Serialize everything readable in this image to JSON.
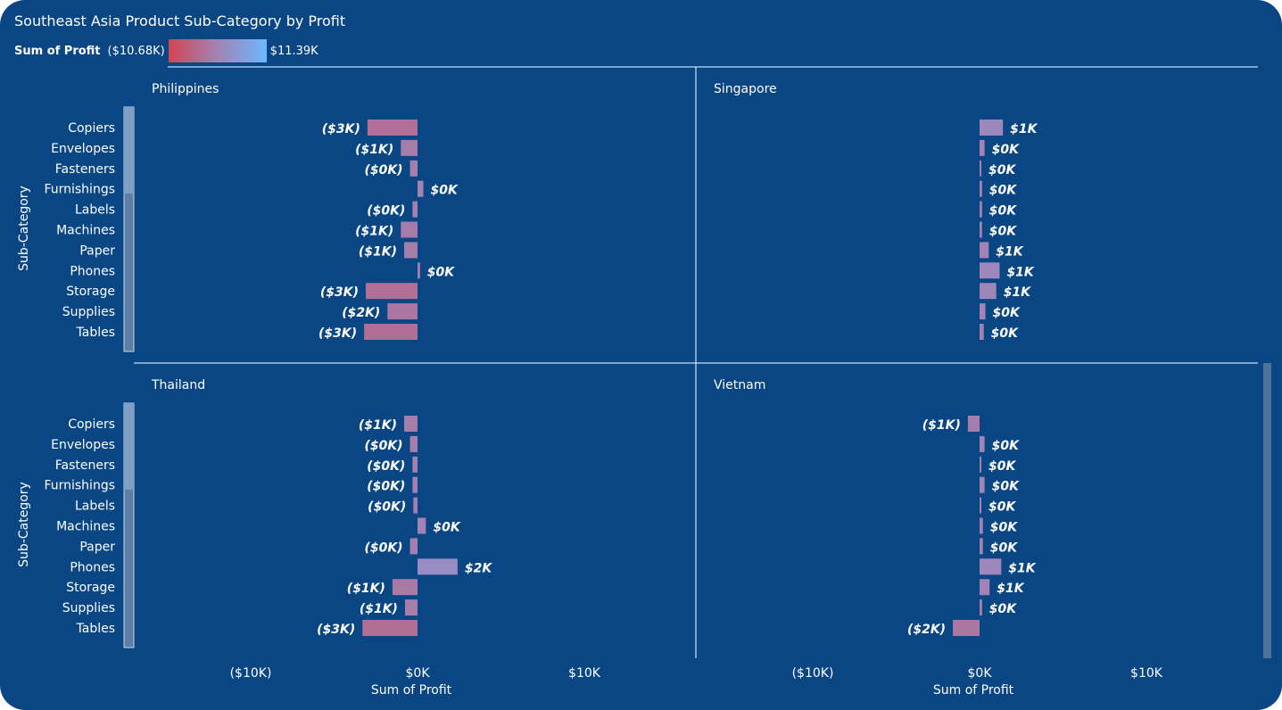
{
  "title": "Southeast Asia Product Sub-Category by Profit",
  "legend": {
    "label": "Sum of Profit",
    "min_label": "($10.68K)",
    "max_label": "$11.39K",
    "min_value": -10680,
    "max_value": 11390,
    "color_low": "#d14654",
    "color_high": "#6eb7ff"
  },
  "y_axis_title": "Sub-Category",
  "x_axis_title": "Sum of Profit",
  "x_ticks": [
    "($10K)",
    "$0K",
    "$10K"
  ],
  "chart_data": {
    "type": "bar",
    "orientation": "horizontal",
    "small_multiples": true,
    "xlim": [
      -10000,
      10000
    ],
    "categories": [
      "Copiers",
      "Envelopes",
      "Fasteners",
      "Furnishings",
      "Labels",
      "Machines",
      "Paper",
      "Phones",
      "Storage",
      "Supplies",
      "Tables"
    ],
    "panels": [
      {
        "name": "Philippines",
        "values": [
          -3000,
          -1000,
          -450,
          350,
          -300,
          -1000,
          -800,
          150,
          -3100,
          -1800,
          -3200
        ],
        "labels": [
          "($3K)",
          "($1K)",
          "($0K)",
          "$0K",
          "($0K)",
          "($1K)",
          "($1K)",
          "$0K",
          "($3K)",
          "($2K)",
          "($3K)"
        ]
      },
      {
        "name": "Singapore",
        "values": [
          1400,
          300,
          100,
          150,
          150,
          150,
          550,
          1200,
          1000,
          350,
          250
        ],
        "labels": [
          "$1K",
          "$0K",
          "$0K",
          "$0K",
          "$0K",
          "$0K",
          "$1K",
          "$1K",
          "$1K",
          "$0K",
          "$0K"
        ]
      },
      {
        "name": "Thailand",
        "values": [
          -800,
          -450,
          -300,
          -300,
          -250,
          500,
          -450,
          2400,
          -1500,
          -750,
          -3300
        ],
        "labels": [
          "($1K)",
          "($0K)",
          "($0K)",
          "($0K)",
          "($0K)",
          "$0K",
          "($0K)",
          "$2K",
          "($1K)",
          "($1K)",
          "($3K)"
        ]
      },
      {
        "name": "Vietnam",
        "values": [
          -700,
          300,
          100,
          300,
          100,
          200,
          200,
          1300,
          600,
          150,
          -1600
        ],
        "labels": [
          "($1K)",
          "$0K",
          "$0K",
          "$0K",
          "$0K",
          "$0K",
          "$0K",
          "$1K",
          "$1K",
          "$0K",
          "($2K)"
        ]
      }
    ]
  }
}
